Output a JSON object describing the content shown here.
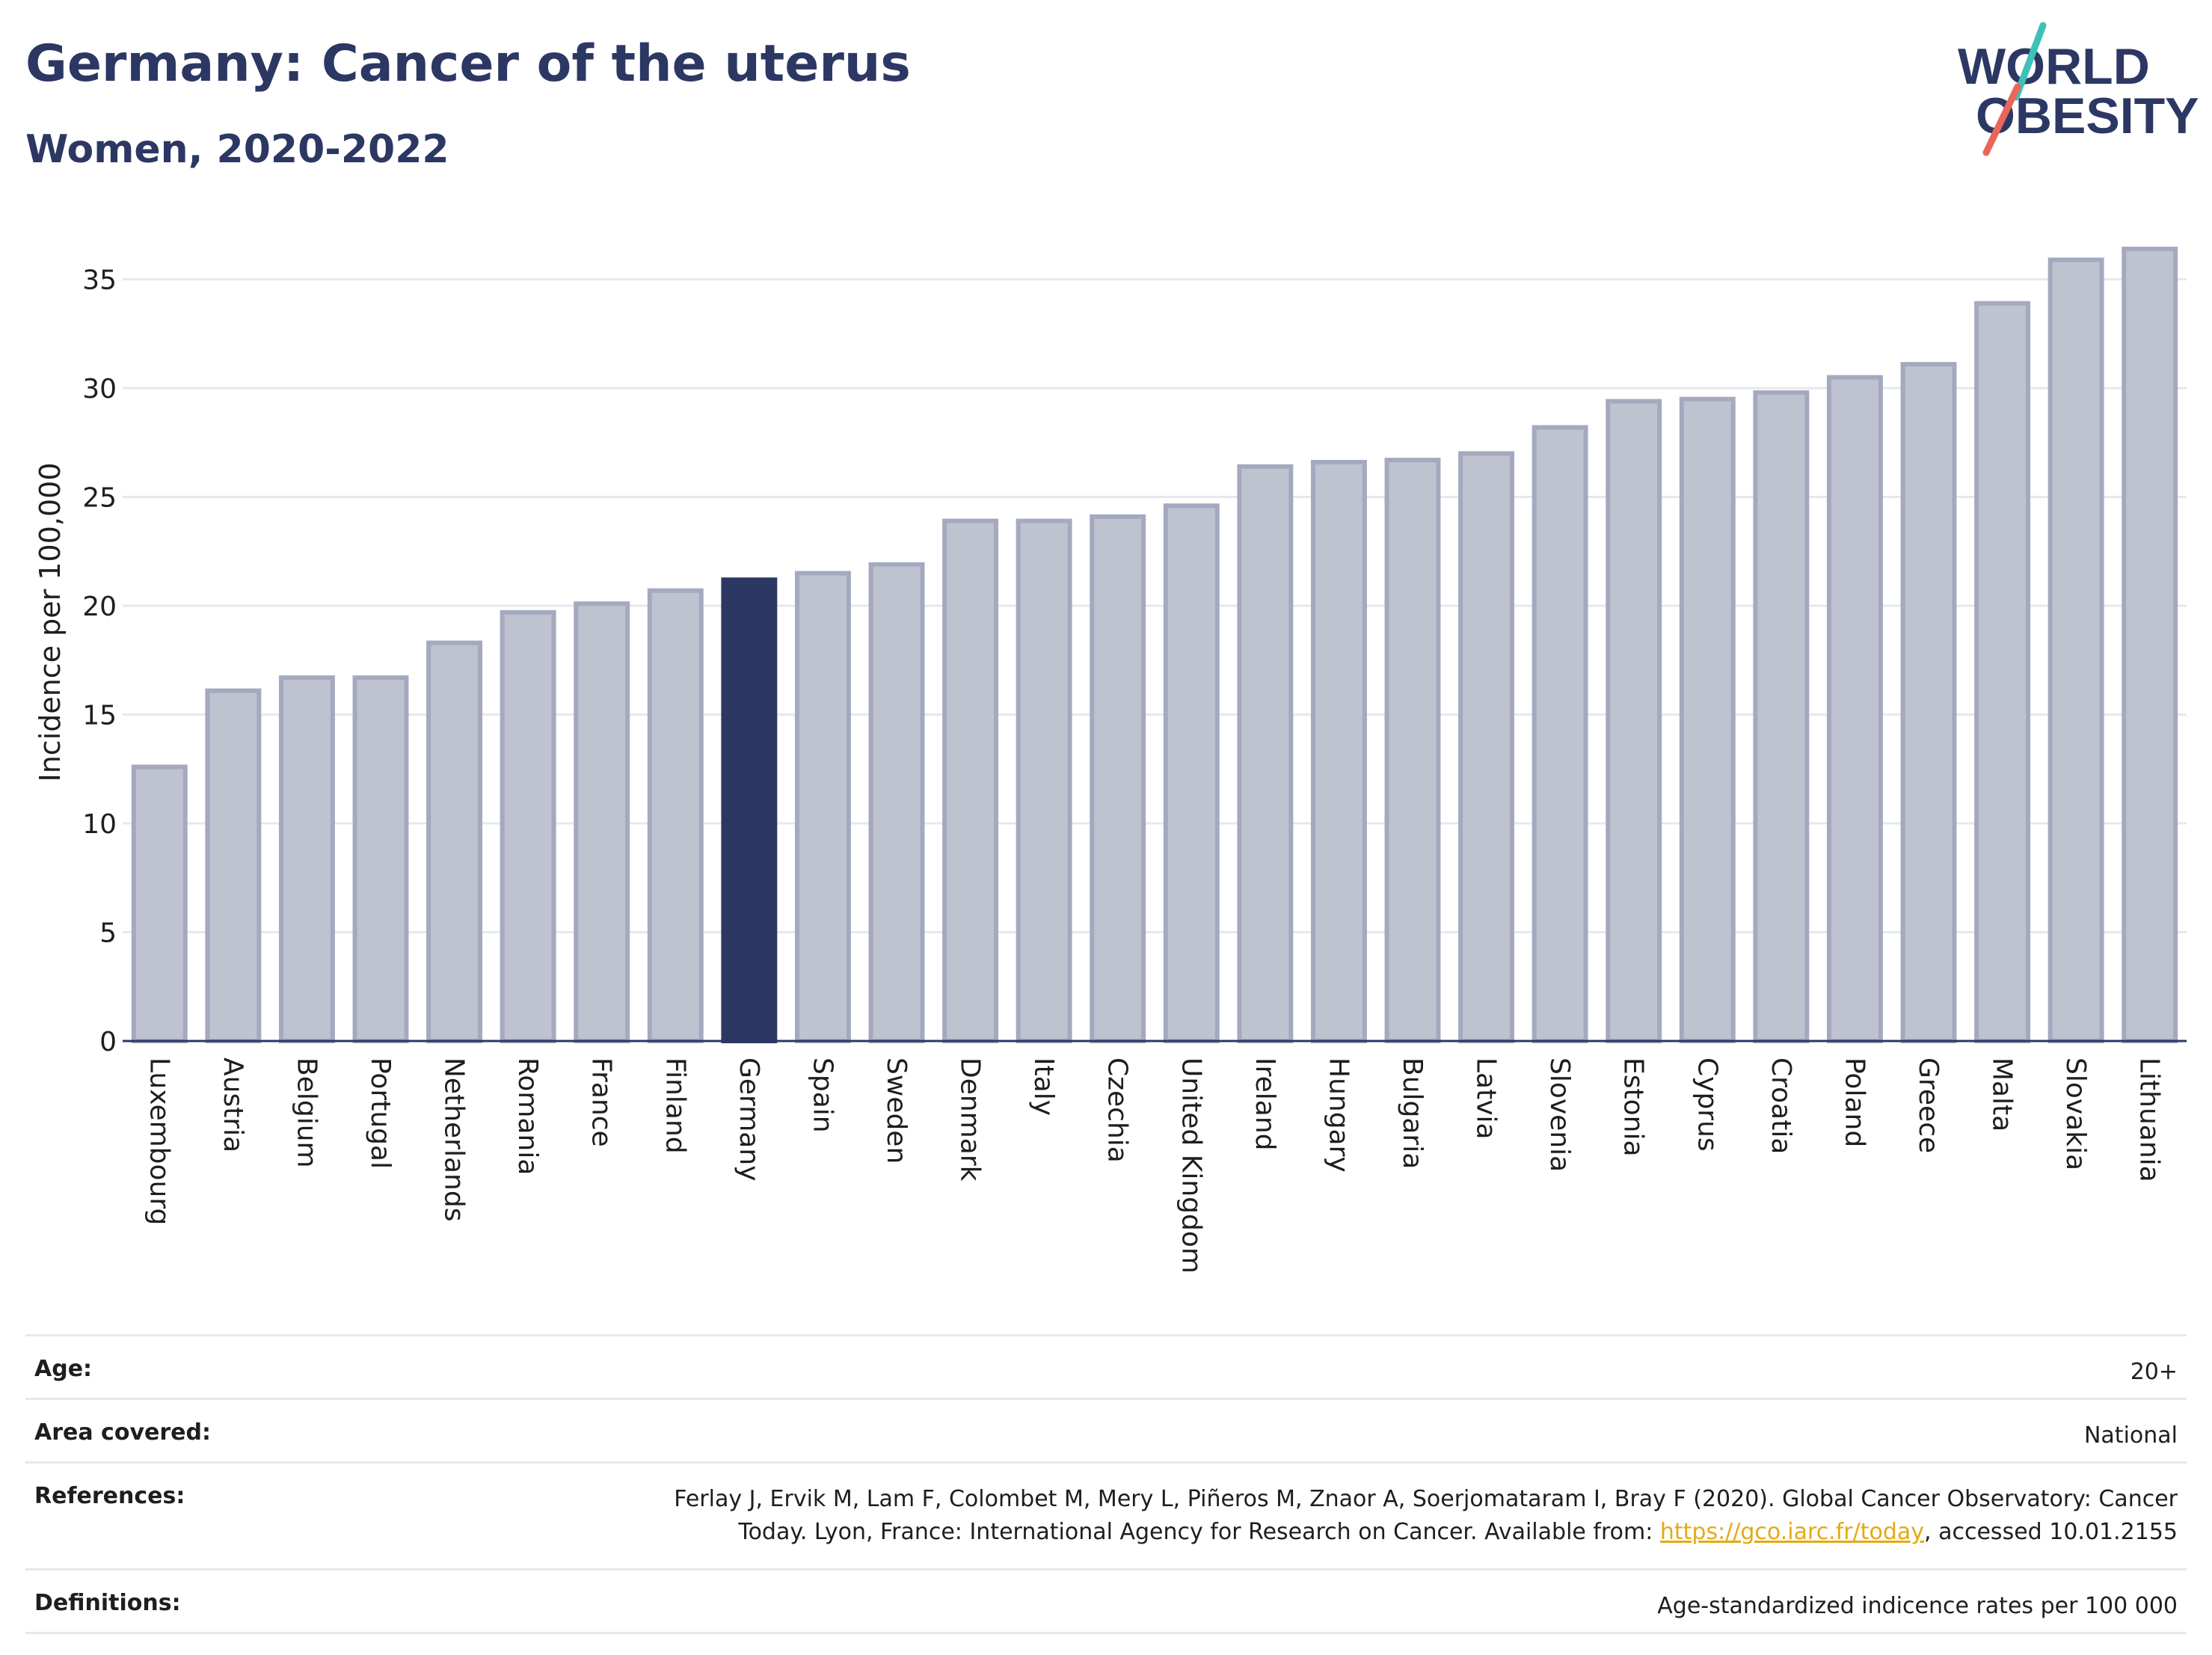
{
  "header": {
    "title": "Germany: Cancer of the uterus",
    "subtitle": "Women, 2020-2022"
  },
  "logo": {
    "line1": "WORLD",
    "line2": "OBESITY"
  },
  "colors": {
    "navy": "#2c3863",
    "bar_fill": "#bfc2cf",
    "bar_stroke": "#a4a9bf",
    "grid": "#e6e8ee",
    "logo_teal": "#3ec1b6",
    "logo_coral": "#e8665a",
    "link": "#e6a817"
  },
  "chart_data": {
    "type": "bar",
    "title": "Germany: Cancer of the uterus",
    "subtitle": "Women, 2020-2022",
    "ylabel": "Incidence per 100,000",
    "xlabel": "",
    "ylim": [
      0,
      37.5
    ],
    "yticks": [
      0,
      5,
      10,
      15,
      20,
      25,
      30,
      35
    ],
    "grid": true,
    "highlight": "Germany",
    "categories": [
      "Luxembourg",
      "Austria",
      "Belgium",
      "Portugal",
      "Netherlands",
      "Romania",
      "France",
      "Finland",
      "Germany",
      "Spain",
      "Sweden",
      "Denmark",
      "Italy",
      "Czechia",
      "United Kingdom",
      "Ireland",
      "Hungary",
      "Bulgaria",
      "Latvia",
      "Slovenia",
      "Estonia",
      "Cyprus",
      "Croatia",
      "Poland",
      "Greece",
      "Malta",
      "Slovakia",
      "Lithuania"
    ],
    "values": [
      12.7,
      16.2,
      16.8,
      16.8,
      18.4,
      19.8,
      20.2,
      20.8,
      21.3,
      21.6,
      22.0,
      24.0,
      24.0,
      24.2,
      24.7,
      26.5,
      26.7,
      26.8,
      27.1,
      28.3,
      29.5,
      29.6,
      29.9,
      30.6,
      31.2,
      34.0,
      36.0,
      36.5
    ]
  },
  "meta": {
    "age_label": "Age:",
    "age_value": "20+",
    "area_label": "Area covered:",
    "area_value": "National",
    "references_label": "References:",
    "references_line1": "Ferlay J, Ervik M, Lam F, Colombet M, Mery L, Piñeros M, Znaor A, Soerjomataram I, Bray F (2020). Global Cancer Observatory: Cancer",
    "references_line2_pre": "Today. Lyon, France: International Agency for Research on Cancer. Available from: ",
    "references_link": "https://gco.iarc.fr/today",
    "references_line2_post": ", accessed 10.01.2155",
    "definitions_label": "Definitions:",
    "definitions_value": "Age-standardized indicence rates per 100 000"
  }
}
